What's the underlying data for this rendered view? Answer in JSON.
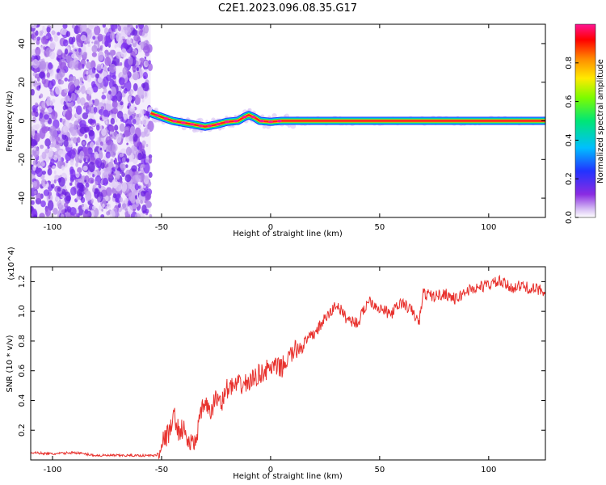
{
  "title": "C2E1.2023.096.08.35.G17",
  "chart_data": [
    {
      "type": "heatmap",
      "xlabel": "Height of straight line (km)",
      "ylabel": "Frequency (Hz)",
      "xlim": [
        -110,
        126
      ],
      "ylim": [
        -50,
        50
      ],
      "xticks": [
        -100,
        -50,
        0,
        50,
        100
      ],
      "yticks": [
        -40,
        -20,
        0,
        20,
        40
      ],
      "noise_region_x": [
        -110,
        -55
      ],
      "ridge": {
        "x": [
          -55,
          -50,
          -45,
          -40,
          -35,
          -30,
          -25,
          -20,
          -15,
          -12,
          -10,
          -7,
          -5,
          0,
          5,
          10,
          50,
          100,
          126
        ],
        "y": [
          4,
          2,
          0,
          -1,
          -2,
          -3,
          -2,
          -0.5,
          0,
          2,
          3,
          1.5,
          0,
          -0.5,
          0,
          0,
          0,
          0,
          0
        ]
      },
      "colorbar": {
        "label": "Normalized spectral amplitude",
        "ticks": [
          "0.0",
          "0.2",
          "0.4",
          "0.6",
          "0.8"
        ],
        "range": [
          0,
          1
        ],
        "colors": [
          "#ffffff",
          "#d9c3f5",
          "#8a2be2",
          "#2233ff",
          "#00bfff",
          "#00e676",
          "#7cfc00",
          "#ffea00",
          "#ff8c00",
          "#ff0000",
          "#ff1493"
        ]
      },
      "grid": false
    },
    {
      "type": "line",
      "xlabel": "Height of straight line (km)",
      "ylabel": "SNR (10 * v/v)",
      "y_multiplier": "(x10^4)",
      "xlim": [
        -110,
        126
      ],
      "ylim": [
        0,
        1.3
      ],
      "xticks": [
        -100,
        -50,
        0,
        50,
        100
      ],
      "yticks": [
        "0.2",
        "0.4",
        "0.6",
        "0.8",
        "1.0",
        "1.2"
      ],
      "line_color": "#e8322e",
      "series": [
        {
          "x": [
            -110,
            -100,
            -90,
            -80,
            -70,
            -60,
            -52,
            -50,
            -48,
            -46,
            -44,
            -42,
            -40,
            -38,
            -35,
            -32,
            -30,
            -28,
            -25,
            -22,
            -20,
            -15,
            -10,
            -5,
            0,
            5,
            10,
            15,
            20,
            25,
            28,
            30,
            35,
            40,
            45,
            50,
            55,
            60,
            65,
            68,
            70,
            75,
            80,
            85,
            90,
            95,
            100,
            105,
            110,
            115,
            120,
            126
          ],
          "y": [
            0.05,
            0.04,
            0.05,
            0.03,
            0.03,
            0.03,
            0.03,
            0.12,
            0.15,
            0.2,
            0.3,
            0.18,
            0.22,
            0.12,
            0.1,
            0.3,
            0.4,
            0.3,
            0.42,
            0.4,
            0.48,
            0.5,
            0.52,
            0.58,
            0.62,
            0.62,
            0.72,
            0.78,
            0.85,
            0.95,
            1.0,
            1.05,
            0.95,
            0.92,
            1.08,
            1.02,
            0.98,
            1.06,
            1.0,
            0.92,
            1.12,
            1.1,
            1.12,
            1.08,
            1.14,
            1.16,
            1.18,
            1.2,
            1.16,
            1.17,
            1.15,
            1.14
          ]
        }
      ],
      "grid": false
    }
  ]
}
